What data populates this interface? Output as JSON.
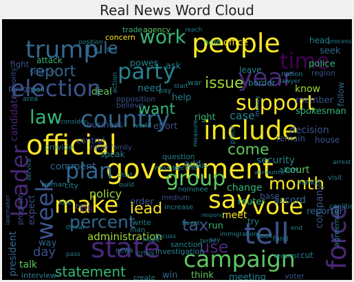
{
  "chart_data": {
    "type": "word cloud",
    "title": "Real News Word Cloud",
    "background": "#000000",
    "colormap": "viridis",
    "words": [
      {
        "text": "official",
        "color": "#fde725"
      },
      {
        "text": "government",
        "color": "#fde725"
      },
      {
        "text": "state",
        "color": "#482878"
      },
      {
        "text": "election",
        "color": "#3b528b"
      },
      {
        "text": "people",
        "color": "#fde725"
      },
      {
        "text": "country",
        "color": "#31688e"
      },
      {
        "text": "include",
        "color": "#f1e51d"
      },
      {
        "text": "campaign",
        "color": "#5ec962"
      },
      {
        "text": "say",
        "color": "#fde725"
      },
      {
        "text": "vote",
        "color": "#fde725"
      },
      {
        "text": "make",
        "color": "#fde725"
      },
      {
        "text": "tell",
        "color": "#3b528b"
      },
      {
        "text": "trump",
        "color": "#31688e"
      },
      {
        "text": "year",
        "color": "#482878"
      },
      {
        "text": "support",
        "color": "#fde725"
      },
      {
        "text": "party",
        "color": "#26828e"
      },
      {
        "text": "time",
        "color": "#440154"
      },
      {
        "text": "law",
        "color": "#35b779"
      },
      {
        "text": "plan",
        "color": "#31688e"
      },
      {
        "text": "group",
        "color": "#5ec962"
      },
      {
        "text": "week",
        "color": "#3b528b"
      },
      {
        "text": "percent",
        "color": "#31688e"
      },
      {
        "text": "work",
        "color": "#35b779"
      },
      {
        "text": "rule",
        "color": "#31688e"
      },
      {
        "text": "report",
        "color": "#31688e"
      },
      {
        "text": "leader",
        "color": "#482878"
      },
      {
        "text": "force",
        "color": "#482878"
      },
      {
        "text": "month",
        "color": "#fde725"
      },
      {
        "text": "lead",
        "color": "#fde725"
      },
      {
        "text": "statement",
        "color": "#35b779"
      },
      {
        "text": "come",
        "color": "#5ec962"
      },
      {
        "text": "issue",
        "color": "#a0da39"
      },
      {
        "text": "want",
        "color": "#35b779"
      },
      {
        "text": "tax",
        "color": "#3b528b"
      },
      {
        "text": "use",
        "color": "#482878"
      },
      {
        "text": "administration",
        "color": "#a0da39"
      },
      {
        "text": "day",
        "color": "#3b528b"
      },
      {
        "text": "policy",
        "color": "#a0da39"
      },
      {
        "text": "comment",
        "color": "#31688e"
      },
      {
        "text": "change",
        "color": "#35b779"
      },
      {
        "text": "court",
        "color": "#5ec962"
      },
      {
        "text": "security",
        "color": "#26828e"
      },
      {
        "text": "case",
        "color": "#26828e"
      },
      {
        "text": "attack",
        "color": "#35b779"
      },
      {
        "text": "need",
        "color": "#26828e"
      },
      {
        "text": "deal",
        "color": "#5ec962"
      },
      {
        "text": "help",
        "color": "#26828e"
      },
      {
        "text": "know",
        "color": "#a0da39"
      },
      {
        "text": "member",
        "color": "#3b528b"
      },
      {
        "text": "spokesman",
        "color": "#35b779"
      },
      {
        "text": "decision",
        "color": "#3b528b"
      },
      {
        "text": "police",
        "color": "#35b779"
      },
      {
        "text": "meet",
        "color": "#fde725"
      },
      {
        "text": "run",
        "color": "#35b779"
      },
      {
        "text": "accord",
        "color": "#31688e"
      },
      {
        "text": "reporter",
        "color": "#31688e"
      },
      {
        "text": "president",
        "color": "#31688e"
      },
      {
        "text": "program",
        "color": "#3b528b"
      },
      {
        "text": "expect",
        "color": "#3b528b"
      },
      {
        "text": "talk",
        "color": "#5ec962"
      },
      {
        "text": "way",
        "color": "#31688e"
      },
      {
        "text": "think",
        "color": "#5ec962"
      },
      {
        "text": "win",
        "color": "#31688e"
      },
      {
        "text": "meeting",
        "color": "#26828e"
      },
      {
        "text": "voter",
        "color": "#3b528b"
      },
      {
        "text": "business",
        "color": "#3b528b"
      },
      {
        "text": "effort",
        "color": "#3b528b"
      },
      {
        "text": "right",
        "color": "#35b779"
      },
      {
        "text": "control",
        "color": "#3b528b"
      },
      {
        "text": "power",
        "color": "#26828e"
      },
      {
        "text": "ask",
        "color": "#26828e"
      },
      {
        "text": "hold",
        "color": "#5ec962"
      },
      {
        "text": "office",
        "color": "#fde725"
      },
      {
        "text": "leave",
        "color": "#26828e"
      },
      {
        "text": "border",
        "color": "#26828e"
      },
      {
        "text": "agency",
        "color": "#5ec962"
      },
      {
        "text": "trade",
        "color": "#35b779"
      },
      {
        "text": "concern",
        "color": "#fde725"
      },
      {
        "text": "source",
        "color": "#3b528b"
      },
      {
        "text": "fight",
        "color": "#3b528b"
      },
      {
        "text": "seek",
        "color": "#31688e"
      },
      {
        "text": "region",
        "color": "#3b528b"
      },
      {
        "text": "head",
        "color": "#26828e"
      },
      {
        "text": "follow",
        "color": "#31688e"
      },
      {
        "text": "candidate",
        "color": "#482878"
      },
      {
        "text": "add",
        "color": "#26828e"
      },
      {
        "text": "order",
        "color": "#3b528b"
      },
      {
        "text": "remain",
        "color": "#3b528b"
      },
      {
        "text": "house",
        "color": "#3b528b"
      },
      {
        "text": "allow",
        "color": "#26828e"
      },
      {
        "text": "base",
        "color": "#3b528b"
      },
      {
        "text": "city",
        "color": "#26828e"
      },
      {
        "text": "question",
        "color": "#26828e"
      },
      {
        "text": "speak",
        "color": "#26828e"
      },
      {
        "text": "bill",
        "color": "#3b528b"
      },
      {
        "text": "kill",
        "color": "#482878"
      },
      {
        "text": "try",
        "color": "#26828e"
      },
      {
        "text": "cut",
        "color": "#26828e"
      },
      {
        "text": "sanction",
        "color": "#26828e"
      },
      {
        "text": "investigation",
        "color": "#26828e"
      },
      {
        "text": "nation",
        "color": "#26828e"
      },
      {
        "text": "war",
        "color": "#26828e"
      },
      {
        "text": "pay",
        "color": "#26828e"
      },
      {
        "text": "budget",
        "color": "#3b528b"
      },
      {
        "text": "poll",
        "color": "#26828e"
      },
      {
        "text": "area",
        "color": "#26828e"
      },
      {
        "text": "opposition",
        "color": "#3b528b"
      },
      {
        "text": "believe",
        "color": "#3b528b"
      },
      {
        "text": "world",
        "color": "#26828e"
      },
      {
        "text": "family",
        "color": "#3b528b"
      },
      {
        "text": "raise",
        "color": "#3b528b"
      },
      {
        "text": "provide",
        "color": "#26828e"
      },
      {
        "text": "woman",
        "color": "#26828e"
      },
      {
        "text": "medium",
        "color": "#3b528b"
      },
      {
        "text": "missile",
        "color": "#26828e"
      },
      {
        "text": "decline",
        "color": "#26828e"
      },
      {
        "text": "nominee",
        "color": "#26828e"
      },
      {
        "text": "increase",
        "color": "#26828e"
      },
      {
        "text": "write",
        "color": "#26828e"
      },
      {
        "text": "hope",
        "color": "#26828e"
      },
      {
        "text": "look",
        "color": "#26828e"
      },
      {
        "text": "request",
        "color": "#26828e"
      },
      {
        "text": "fund",
        "color": "#26828e"
      },
      {
        "text": "immigration",
        "color": "#26828e"
      },
      {
        "text": "term",
        "color": "#26828e"
      },
      {
        "text": "crisis",
        "color": "#26828e"
      },
      {
        "text": "news",
        "color": "#26828e"
      },
      {
        "text": "lawmaker",
        "color": "#3b528b"
      },
      {
        "text": "interview",
        "color": "#26828e"
      },
      {
        "text": "create",
        "color": "#26828e"
      },
      {
        "text": "agreement",
        "color": "#26828e"
      },
      {
        "text": "company",
        "color": "#3b528b"
      },
      {
        "text": "coalition",
        "color": "#26828e"
      },
      {
        "text": "visit",
        "color": "#26828e"
      },
      {
        "text": "market",
        "color": "#26828e"
      },
      {
        "text": "arrest",
        "color": "#26828e"
      },
      {
        "text": "place",
        "color": "#26828e"
      },
      {
        "text": "money",
        "color": "#26828e"
      },
      {
        "text": "lawyer",
        "color": "#26828e"
      },
      {
        "text": "process",
        "color": "#26828e"
      },
      {
        "text": "position",
        "color": "#26828e"
      },
      {
        "text": "start",
        "color": "#26828e"
      },
      {
        "text": "action",
        "color": "#26828e"
      },
      {
        "text": "service",
        "color": "#26828e"
      },
      {
        "text": "authority",
        "color": "#3b528b"
      },
      {
        "text": "measure",
        "color": "#26828e"
      },
      {
        "text": "consider",
        "color": "#26828e"
      },
      {
        "text": "reach",
        "color": "#26828e"
      },
      {
        "text": "set",
        "color": "#26828e"
      },
      {
        "text": "build",
        "color": "#26828e"
      },
      {
        "text": "threat",
        "color": "#26828e"
      },
      {
        "text": "man",
        "color": "#26828e"
      },
      {
        "text": "lose",
        "color": "#26828e"
      },
      {
        "text": "pass",
        "color": "#26828e"
      },
      {
        "text": "respond",
        "color": "#26828e"
      },
      {
        "text": "discuss",
        "color": "#26828e"
      },
      {
        "text": "child",
        "color": "#26828e"
      },
      {
        "text": "announce",
        "color": "#26828e"
      },
      {
        "text": "tweet",
        "color": "#26828e"
      },
      {
        "text": "end",
        "color": "#26828e"
      },
      {
        "text": "reuter",
        "color": "#35b779"
      },
      {
        "text": "say",
        "color": "#26828e"
      },
      {
        "text": "add",
        "color": "#26828e"
      }
    ]
  }
}
